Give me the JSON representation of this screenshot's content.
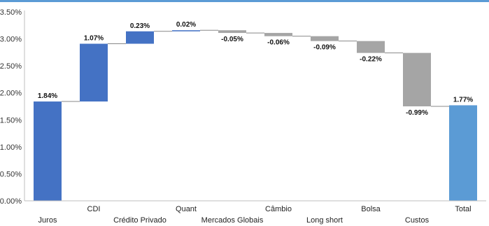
{
  "chart_data": {
    "type": "bar",
    "subtype": "waterfall",
    "categories": [
      "Juros",
      "CDI",
      "Crédito Privado",
      "Quant",
      "Mercados Globais",
      "Câmbio",
      "Long short",
      "Bolsa",
      "Custos",
      "Total"
    ],
    "values": [
      1.84,
      1.07,
      0.23,
      0.02,
      -0.05,
      -0.06,
      -0.09,
      -0.22,
      -0.99,
      1.77
    ],
    "data_labels": [
      "1.84%",
      "1.07%",
      "0.23%",
      "0.02%",
      "-0.05%",
      "-0.06%",
      "-0.09%",
      "-0.22%",
      "-0.99%",
      "1.77%"
    ],
    "is_total": [
      false,
      false,
      false,
      false,
      false,
      false,
      false,
      false,
      false,
      true
    ],
    "y_ticks": [
      "0.00%",
      "0.50%",
      "1.00%",
      "1.50%",
      "2.00%",
      "2.50%",
      "3.00%",
      "3.50%"
    ],
    "y_tick_values": [
      0,
      0.5,
      1.0,
      1.5,
      2.0,
      2.5,
      3.0,
      3.5
    ],
    "ylim": [
      0,
      3.5
    ],
    "title": "",
    "xlabel": "",
    "ylabel": "",
    "grid": false,
    "legend": "none",
    "colors": {
      "increase": "#4472C4",
      "decrease": "#A5A5A5",
      "total": "#5B9BD5",
      "top_border": "#5B9BD5",
      "connector": "#888888"
    }
  }
}
